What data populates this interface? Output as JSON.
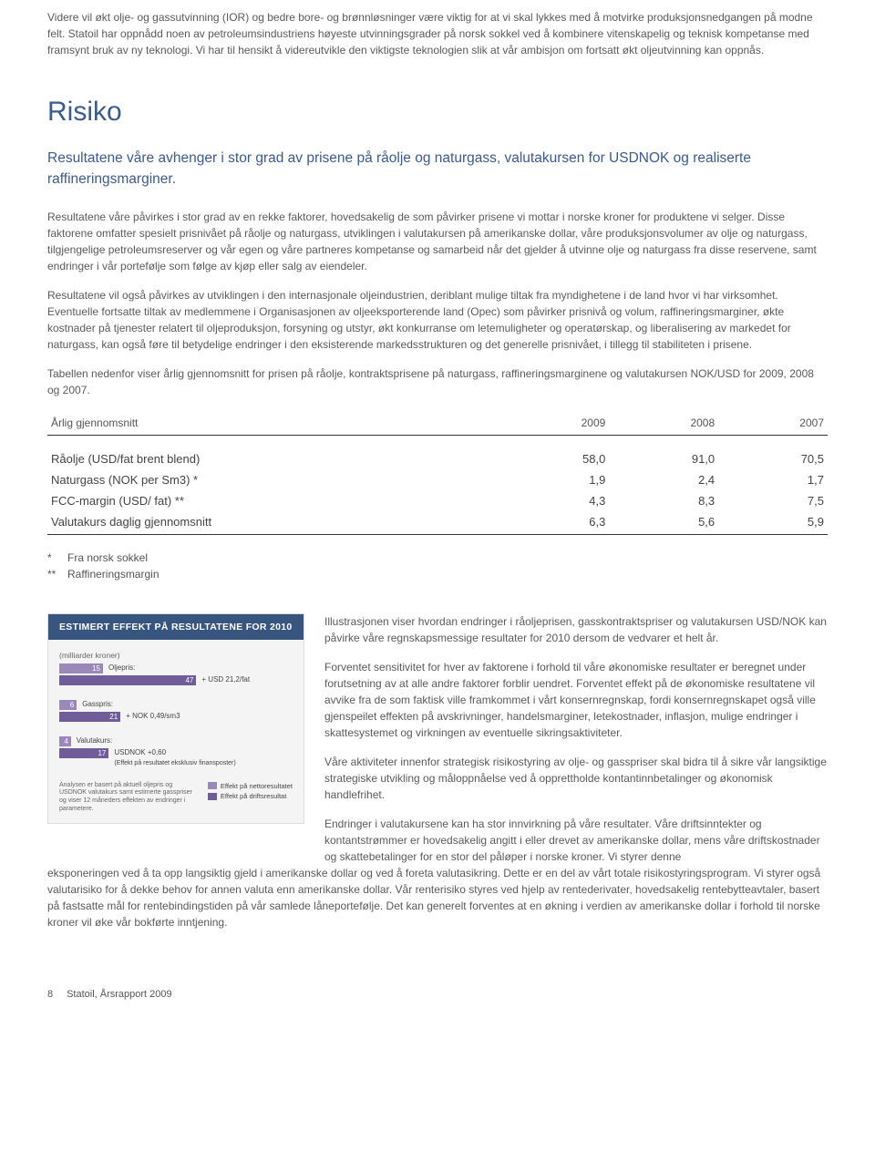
{
  "intro": {
    "p1": "Videre vil økt olje- og gassutvinning (IOR) og bedre bore- og brønnløsninger være viktig for at vi skal lykkes med å motvirke produksjonsnedgangen på modne felt. Statoil har oppnådd noen av petroleumsindustriens høyeste utvinningsgrader på norsk sokkel ved å kombinere vitenskapelig og teknisk kompetanse med framsynt bruk av ny teknologi. Vi har til hensikt å videreutvikle den viktigste teknologien slik at vår ambisjon om fortsatt økt oljeutvinning kan oppnås."
  },
  "section": {
    "title": "Risiko",
    "lead": "Resultatene våre avhenger i stor grad av prisene på råolje og naturgass, valutakursen for USDNOK og realiserte raffineringsmarginer.",
    "p1": "Resultatene våre påvirkes i stor grad av en rekke faktorer, hovedsakelig de som påvirker prisene vi mottar i norske kroner for produktene vi selger. Disse faktorene omfatter spesielt prisnivået på råolje og naturgass, utviklingen i valutakursen på amerikanske dollar, våre produksjonsvolumer av olje og naturgass, tilgjengelige petroleumsreserver og vår egen og våre partneres kompetanse og samarbeid når det gjelder å utvinne olje og naturgass fra disse reservene, samt endringer i vår portefølje som følge av kjøp eller salg av eiendeler.",
    "p2": "Resultatene vil også påvirkes av utviklingen i den internasjonale oljeindustrien, deriblant mulige tiltak fra myndighetene i de land hvor vi har virksomhet. Eventuelle fortsatte tiltak av medlemmene i Organisasjonen av oljeeksporterende land (Opec) som påvirker prisnivå og volum, raffineringsmarginer, økte kostnader på tjenester relatert til oljeproduksjon, forsyning og utstyr, økt konkurranse om letemuligheter og operatørskap, og liberalisering av markedet for naturgass, kan også føre til betydelige endringer i den eksisterende markedsstrukturen og det generelle prisnivået, i tillegg til stabiliteten i prisene.",
    "p3": "Tabellen nedenfor viser årlig gjennomsnitt for prisen på råolje, kontraktsprisene på naturgass, raffineringsmarginene og valutakursen NOK/USD for 2009, 2008 og 2007."
  },
  "table": {
    "header": [
      "Årlig gjennomsnitt",
      "2009",
      "2008",
      "2007"
    ],
    "rows": [
      [
        "Råolje (USD/fat brent blend)",
        "58,0",
        "91,0",
        "70,5"
      ],
      [
        "Naturgass (NOK per Sm3) *",
        "1,9",
        "2,4",
        "1,7"
      ],
      [
        "FCC-margin (USD/ fat) **",
        "4,3",
        "8,3",
        "7,5"
      ],
      [
        "Valutakurs daglig gjennomsnitt",
        "6,3",
        "5,6",
        "5,9"
      ]
    ]
  },
  "footnotes": {
    "f1": {
      "mark": "*",
      "text": "Fra norsk sokkel"
    },
    "f2": {
      "mark": "**",
      "text": "Raffineringsmargin"
    }
  },
  "chart": {
    "title": "ESTIMERT EFFEKT PÅ RESULTATENE FOR 2010",
    "unit": "(milliarder kroner)",
    "max": 50,
    "colors": {
      "net": "#9a88b8",
      "oper": "#6f5c98"
    },
    "groups": [
      {
        "label": "Oljepris:",
        "sub": "+ USD 21,2/fat",
        "net": 15,
        "oper": 47
      },
      {
        "label": "Gasspris:",
        "sub": "+ NOK 0,49/sm3",
        "net": 6,
        "oper": 21
      },
      {
        "label": "Valutakurs:",
        "sub": "USDNOK +0,60",
        "sub2": "(Effekt på resultatet eksklusiv finansposter)",
        "net": 4,
        "oper": 17
      }
    ],
    "note": "Analysen er basert på aktuell oljepris og USDNOK valutakurs samt estimerte gasspriser og viser 12 måneders effekten av endringer i parametere.",
    "legend": {
      "net": "Effekt på nettoresultatet",
      "oper": "Effekt på driftsresultat"
    }
  },
  "right": {
    "p1": "Illustrasjonen viser hvordan endringer i råoljeprisen, gasskontraktspriser og valutakursen USD/NOK kan påvirke våre regnskapsmessige resultater for 2010 dersom de vedvarer et helt år.",
    "p2": "Forventet sensitivitet for hver av faktorene i forhold til våre økonomiske resultater er beregnet under forutsetning av at alle andre faktorer forblir uendret. Forventet effekt på de økonomiske resultatene vil avvike fra de som faktisk ville framkommet i vårt konsernregnskap, fordi konsernregnskapet også ville gjenspeilet effekten på avskrivninger, handelsmarginer, letekostnader, inflasjon, mulige endringer i skattesystemet og virkningen av eventuelle sikringsaktiviteter.",
    "p3": "Våre aktiviteter innenfor strategisk risikostyring av olje- og gasspriser skal bidra til å sikre vår langsiktige strategiske utvikling og måloppnåelse ved å opprettholde kontantinnbetalinger og økonomisk handlefrihet.",
    "p4a": "Endringer i valutakursene kan ha stor innvirkning på våre resultater. Våre driftsinntekter og kontantstrømmer er hovedsakelig angitt i eller drevet av amerikanske dollar, mens våre driftskostnader og skattebetalinger for en stor del påløper i norske kroner. Vi styrer denne",
    "p4b": "eksponeringen ved å ta opp langsiktig gjeld i amerikanske dollar og ved å foreta valutasikring. Dette er en del av vårt totale risikostyringsprogram. Vi styrer også valutarisiko for å dekke behov for annen valuta enn amerikanske dollar. Vår renterisiko styres ved hjelp av rentederivater, hovedsakelig rentebytteavtaler, basert på fastsatte mål for rentebindingstiden på vår samlede låneportefølje. Det kan generelt forventes at en økning i verdien av amerikanske dollar i forhold til norske kroner vil øke vår bokførte inntjening."
  },
  "footer": {
    "page": "8",
    "doc": "Statoil, Årsrapport 2009"
  }
}
